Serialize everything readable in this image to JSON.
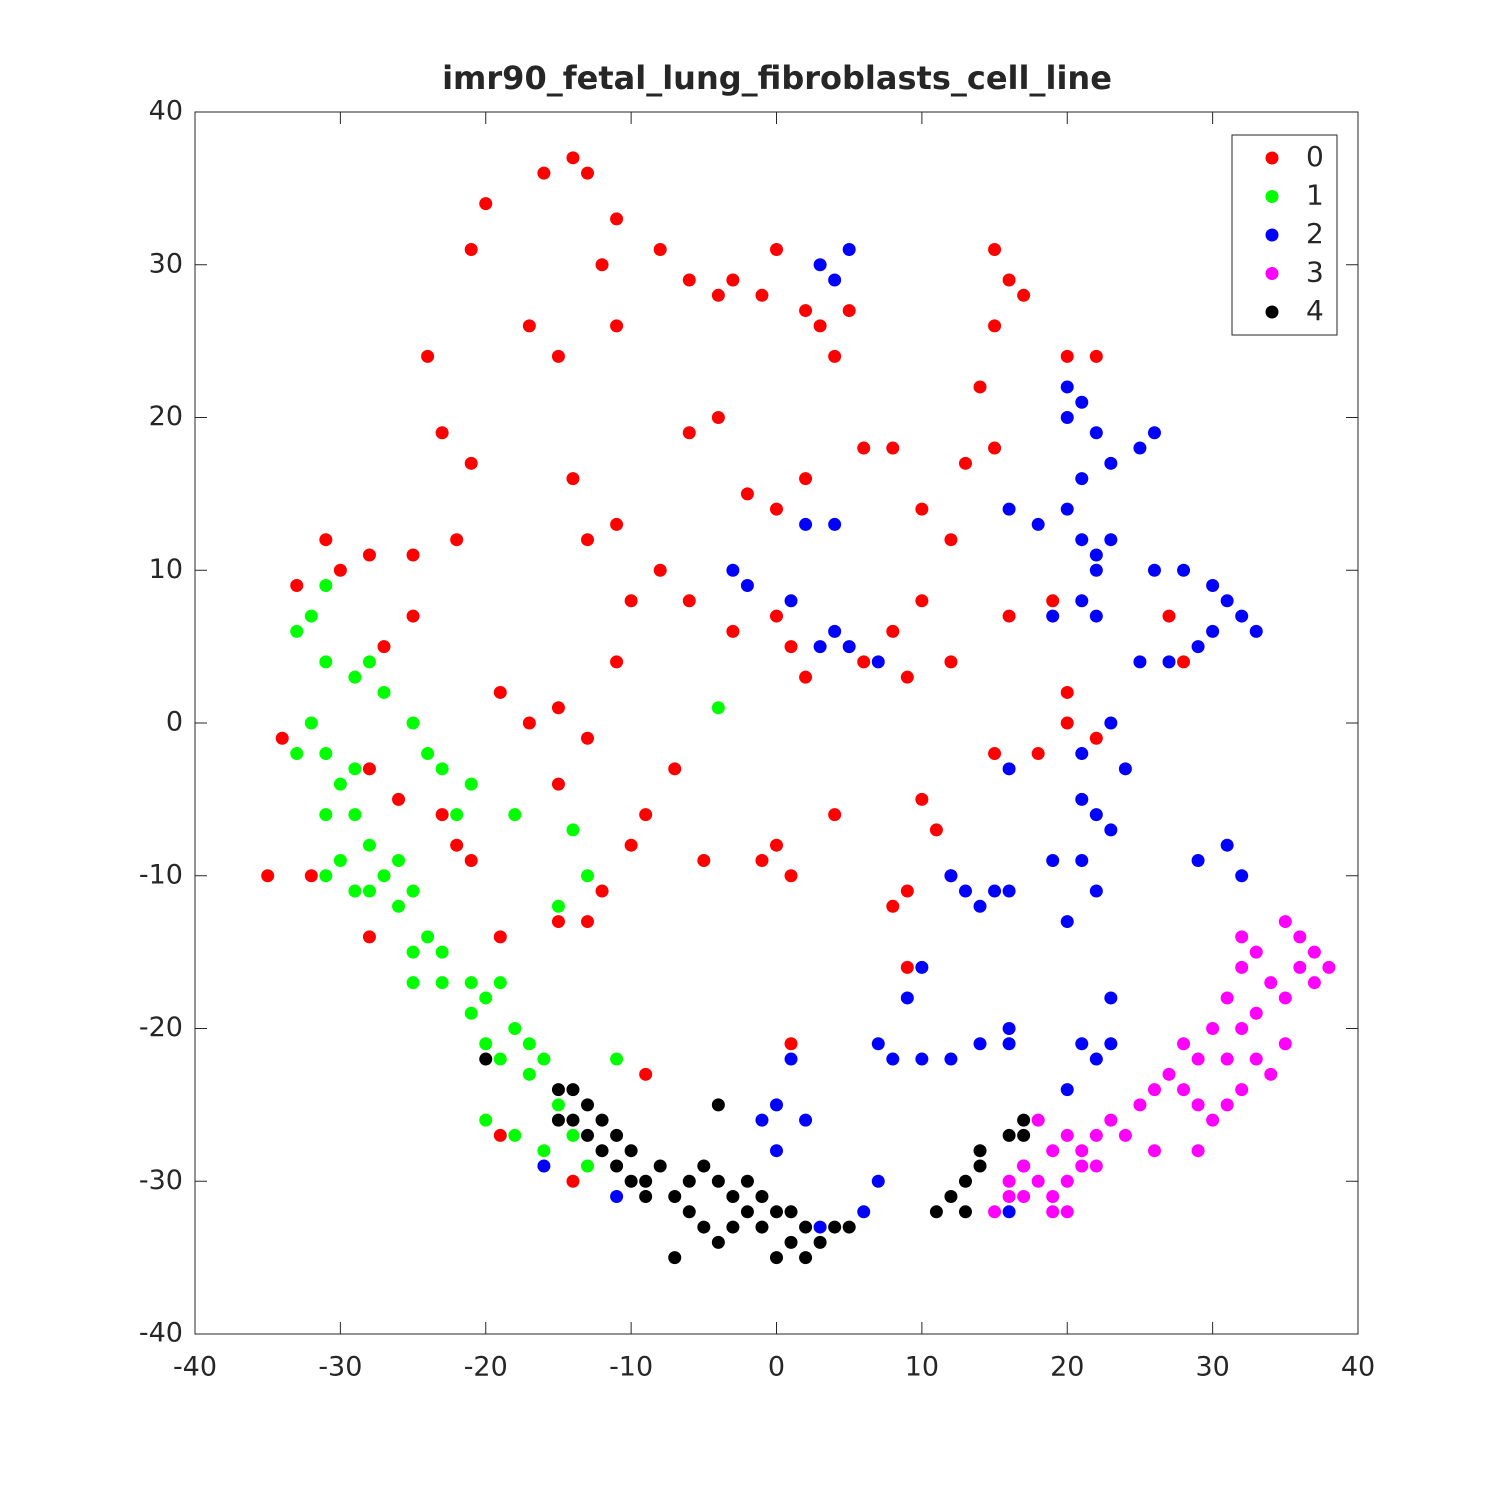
{
  "chart_data": {
    "type": "scatter",
    "title": "imr90_fetal_lung_fibroblasts_cell_line",
    "xlim": [
      -40,
      40
    ],
    "ylim": [
      -40,
      40
    ],
    "xticks": [
      -40,
      -30,
      -20,
      -10,
      0,
      10,
      20,
      30,
      40
    ],
    "yticks": [
      -40,
      -30,
      -20,
      -10,
      0,
      10,
      20,
      30,
      40
    ],
    "legend": "upper right",
    "series": [
      {
        "name": "0",
        "color": "#ff0000",
        "x": [
          -31,
          -33,
          -30,
          -28,
          -25,
          -22,
          -34,
          -35,
          -32,
          -28,
          -28,
          -22,
          -21,
          -19,
          -15,
          -13,
          -12,
          -10,
          -9,
          -7,
          -5,
          -19,
          -17,
          -15,
          -13,
          -15,
          -11,
          -10,
          -13,
          -11,
          -14,
          -8,
          -6,
          -3,
          0,
          1,
          2,
          -6,
          -4,
          -2,
          0,
          2,
          -20,
          -21,
          -17,
          -15,
          -24,
          -23,
          -21,
          -14,
          -13,
          -16,
          -11,
          -12,
          -11,
          -8,
          -6,
          -4,
          -3,
          -1,
          0,
          2,
          4,
          3,
          5,
          15,
          16,
          17,
          15,
          20,
          22,
          14,
          15,
          13,
          10,
          12,
          10,
          8,
          6,
          9,
          12,
          16,
          19,
          20,
          20,
          18,
          15,
          22,
          0,
          1,
          -1,
          4,
          11,
          10,
          9,
          8,
          9,
          12,
          27,
          28,
          1,
          -9,
          -14,
          -19,
          6,
          8,
          -27,
          -25,
          -26,
          -23
        ],
        "values": [
          12,
          9,
          10,
          11,
          11,
          12,
          -1,
          -10,
          -10,
          -14,
          -3,
          -8,
          -9,
          -14,
          -13,
          -13,
          -11,
          -8,
          -6,
          -3,
          -9,
          2,
          0,
          1,
          -1,
          -4,
          4,
          8,
          12,
          13,
          16,
          10,
          8,
          6,
          7,
          5,
          3,
          19,
          20,
          15,
          14,
          16,
          34,
          31,
          26,
          24,
          24,
          19,
          17,
          37,
          36,
          36,
          33,
          30,
          26,
          31,
          29,
          28,
          29,
          28,
          31,
          27,
          24,
          26,
          27,
          31,
          29,
          28,
          26,
          24,
          24,
          22,
          18,
          17,
          14,
          12,
          8,
          6,
          4,
          3,
          4,
          7,
          8,
          2,
          0,
          -2,
          -2,
          -1,
          -8,
          -10,
          -9,
          -6,
          -7,
          -5,
          -11,
          -12,
          -16,
          -10,
          7,
          4,
          -21,
          -23,
          -30,
          -27,
          18,
          18,
          5,
          7,
          -5,
          -6
        ]
      },
      {
        "name": "1",
        "color": "#00ff00",
        "x": [
          -31,
          -32,
          -33,
          -31,
          -29,
          -28,
          -27,
          -25,
          -24,
          -23,
          -32,
          -33,
          -31,
          -30,
          -29,
          -31,
          -29,
          -28,
          -30,
          -27,
          -26,
          -25,
          -28,
          -31,
          -29,
          -26,
          -25,
          -24,
          -23,
          -25,
          -23,
          -21,
          -20,
          -19,
          -18,
          -20,
          -19,
          -17,
          -17,
          -16,
          -15,
          -16,
          -14,
          -13,
          -11,
          -21,
          -20,
          -18,
          -4,
          -14,
          -13,
          -15,
          -22,
          -18,
          -21
        ],
        "values": [
          9,
          7,
          6,
          4,
          3,
          4,
          2,
          0,
          -2,
          -3,
          0,
          -2,
          -2,
          -4,
          -3,
          -6,
          -6,
          -8,
          -9,
          -10,
          -12,
          -11,
          -11,
          -10,
          -11,
          -9,
          -15,
          -14,
          -15,
          -17,
          -17,
          -19,
          -18,
          -17,
          -20,
          -21,
          -22,
          -21,
          -23,
          -22,
          -25,
          -28,
          -27,
          -29,
          -22,
          -17,
          -26,
          -27,
          1,
          -7,
          -10,
          -12,
          -6,
          -6,
          -4
        ]
      },
      {
        "name": "2",
        "color": "#0000ff",
        "x": [
          5,
          4,
          3,
          20,
          21,
          20,
          22,
          26,
          25,
          23,
          21,
          20,
          18,
          16,
          21,
          22,
          23,
          22,
          21,
          19,
          22,
          26,
          28,
          30,
          31,
          32,
          30,
          33,
          29,
          27,
          25,
          2,
          4,
          3,
          5,
          7,
          4,
          1,
          -3,
          -2,
          16,
          21,
          23,
          24,
          21,
          22,
          23,
          21,
          22,
          29,
          31,
          32,
          13,
          14,
          15,
          16,
          12,
          20,
          19,
          10,
          9,
          7,
          8,
          10,
          12,
          14,
          16,
          16,
          23,
          23,
          22,
          20,
          1,
          0,
          0,
          -1,
          2,
          3,
          7,
          6,
          -11,
          -16,
          17,
          16,
          21
        ],
        "values": [
          31,
          29,
          30,
          22,
          21,
          20,
          19,
          19,
          18,
          17,
          16,
          14,
          13,
          14,
          12,
          11,
          12,
          10,
          8,
          7,
          7,
          10,
          10,
          9,
          8,
          7,
          6,
          6,
          5,
          4,
          4,
          13,
          13,
          5,
          5,
          4,
          6,
          8,
          10,
          9,
          -3,
          -2,
          0,
          -3,
          -5,
          -6,
          -7,
          -9,
          -11,
          -9,
          -8,
          -10,
          -11,
          -12,
          -11,
          -11,
          -10,
          -13,
          -9,
          -16,
          -18,
          -21,
          -22,
          -22,
          -22,
          -21,
          -21,
          -20,
          -18,
          -21,
          -22,
          -24,
          -22,
          -25,
          -28,
          -26,
          -26,
          -33,
          -30,
          -32,
          -31,
          -29,
          -29,
          -32,
          -21
        ]
      },
      {
        "name": "3",
        "color": "#ff00ff",
        "x": [
          35,
          37,
          36,
          34,
          35,
          33,
          32,
          33,
          31,
          34,
          32,
          31,
          30,
          29,
          28,
          27,
          26,
          25,
          29,
          28,
          30,
          31,
          32,
          33,
          36,
          37,
          24,
          23,
          22,
          21,
          20,
          19,
          20,
          21,
          19,
          18,
          17,
          16,
          17,
          19,
          20,
          18,
          22,
          26,
          29,
          32,
          35,
          15,
          16,
          38
        ],
        "values": [
          -13,
          -15,
          -16,
          -17,
          -18,
          -19,
          -20,
          -22,
          -22,
          -23,
          -24,
          -25,
          -26,
          -25,
          -24,
          -23,
          -24,
          -25,
          -22,
          -21,
          -20,
          -18,
          -16,
          -15,
          -14,
          -17,
          -27,
          -26,
          -27,
          -28,
          -27,
          -28,
          -30,
          -29,
          -31,
          -30,
          -29,
          -30,
          -31,
          -32,
          -32,
          -26,
          -29,
          -28,
          -28,
          -14,
          -21,
          -32,
          -31,
          -16
        ]
      },
      {
        "name": "4",
        "color": "#000000",
        "x": [
          -15,
          -14,
          -13,
          -12,
          -11,
          -10,
          -12,
          -11,
          -9,
          -8,
          -7,
          -6,
          -5,
          -4,
          -3,
          -2,
          -6,
          -5,
          -4,
          -3,
          -2,
          -1,
          0,
          1,
          2,
          3,
          4,
          5,
          0,
          1,
          2,
          -7,
          -1,
          -9,
          -10,
          -13,
          -14,
          -4,
          -20,
          11,
          12,
          13,
          14,
          14,
          16,
          17,
          17,
          13,
          -15
        ],
        "values": [
          -24,
          -24,
          -25,
          -26,
          -27,
          -28,
          -28,
          -29,
          -30,
          -29,
          -31,
          -30,
          -29,
          -30,
          -31,
          -30,
          -32,
          -33,
          -34,
          -33,
          -32,
          -33,
          -32,
          -32,
          -33,
          -34,
          -33,
          -33,
          -35,
          -34,
          -35,
          -35,
          -31,
          -31,
          -30,
          -27,
          -26,
          -25,
          -22,
          -32,
          -31,
          -30,
          -29,
          -28,
          -27,
          -27,
          -26,
          -32,
          -26
        ]
      }
    ]
  }
}
